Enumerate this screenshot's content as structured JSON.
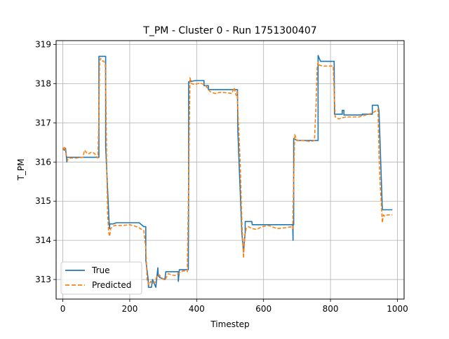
{
  "chart_data": {
    "type": "line",
    "title": "T_PM - Cluster 0 - Run 1751300407",
    "xlabel": "Timestep",
    "ylabel": "T_PM",
    "xlim": [
      -20,
      1020
    ],
    "ylim": [
      312.5,
      319.1
    ],
    "xticks": [
      0,
      200,
      400,
      600,
      800,
      1000
    ],
    "yticks": [
      313,
      314,
      315,
      316,
      317,
      318,
      319
    ],
    "grid": true,
    "legend_position": "lower left",
    "series": [
      {
        "name": "True",
        "color": "#1f77b4",
        "style": "solid",
        "x": [
          0,
          5,
          8,
          12,
          13,
          40,
          100,
          108,
          108,
          128,
          128,
          138,
          140,
          140,
          150,
          160,
          228,
          242,
          248,
          248,
          255,
          256,
          265,
          268,
          278,
          284,
          285,
          290,
          290,
          305,
          308,
          338,
          345,
          345,
          348,
          348,
          350,
          355,
          355,
          375,
          376,
          376,
          398,
          422,
          422,
          435,
          435,
          452,
          452,
          480,
          500,
          522,
          523,
          535,
          540,
          545,
          545,
          565,
          566,
          600,
          600,
          635,
          687,
          688,
          688,
          690,
          690,
          700,
          720,
          752,
          762,
          763,
          763,
          770,
          810,
          811,
          812,
          812,
          835,
          835,
          840,
          840,
          880,
          895,
          895,
          925,
          925,
          942,
          945,
          955,
          960,
          960,
          985
        ],
        "y": [
          316.35,
          316.3,
          316.35,
          316.0,
          316.12,
          316.12,
          316.12,
          316.12,
          318.7,
          318.7,
          316.4,
          314.5,
          314.3,
          314.42,
          314.42,
          314.45,
          314.45,
          314.35,
          314.35,
          313.5,
          313.0,
          312.8,
          312.8,
          313.0,
          312.8,
          313.3,
          313.1,
          313.05,
          313.05,
          313.0,
          313.2,
          313.2,
          313.2,
          312.95,
          313.2,
          313.25,
          313.25,
          313.25,
          313.25,
          313.25,
          315.5,
          318.05,
          318.08,
          318.08,
          317.95,
          317.95,
          317.85,
          317.85,
          317.85,
          317.85,
          317.85,
          317.85,
          316.8,
          314.2,
          313.7,
          314.2,
          314.48,
          314.48,
          314.4,
          314.4,
          314.4,
          314.4,
          314.4,
          314.0,
          314.4,
          314.4,
          316.6,
          316.55,
          316.55,
          316.55,
          316.55,
          316.55,
          318.72,
          318.57,
          318.57,
          318.57,
          317.22,
          317.22,
          317.22,
          317.32,
          317.32,
          317.2,
          317.2,
          317.2,
          317.22,
          317.22,
          317.45,
          317.45,
          317.3,
          314.78,
          314.78,
          314.78,
          314.78
        ]
      },
      {
        "name": "Predicted",
        "color": "#ff7f0e",
        "style": "dashed",
        "x": [
          0,
          5,
          10,
          14,
          20,
          40,
          60,
          65,
          70,
          75,
          85,
          95,
          100,
          105,
          108,
          110,
          113,
          118,
          122,
          127,
          129,
          131,
          134,
          137,
          140,
          143,
          148,
          155,
          165,
          180,
          200,
          220,
          228,
          235,
          242,
          248,
          252,
          255,
          258,
          262,
          268,
          275,
          282,
          288,
          295,
          305,
          315,
          325,
          335,
          345,
          352,
          362,
          372,
          376,
          380,
          385,
          395,
          410,
          425,
          440,
          455,
          470,
          490,
          505,
          512,
          518,
          521,
          524,
          530,
          535,
          540,
          544,
          548,
          555,
          565,
          580,
          595,
          615,
          640,
          665,
          684,
          687,
          690,
          693,
          700,
          720,
          740,
          752,
          757,
          760,
          763,
          766,
          775,
          795,
          808,
          811,
          814,
          825,
          845,
          865,
          885,
          905,
          925,
          935,
          942,
          945,
          948,
          952,
          955,
          958,
          962,
          970,
          985
        ],
        "y": [
          316.3,
          316.4,
          316.2,
          316.05,
          316.1,
          316.1,
          316.12,
          316.3,
          316.25,
          316.2,
          316.25,
          316.22,
          316.15,
          316.1,
          317.2,
          318.55,
          318.65,
          318.58,
          318.58,
          318.5,
          317.5,
          316.0,
          314.7,
          314.2,
          314.1,
          314.3,
          314.35,
          314.38,
          314.38,
          314.38,
          314.4,
          314.35,
          314.32,
          314.28,
          314.25,
          313.8,
          313.0,
          312.9,
          312.85,
          312.95,
          312.9,
          312.92,
          313.1,
          313.12,
          313.05,
          312.98,
          313.15,
          313.12,
          313.1,
          313.15,
          313.2,
          313.22,
          313.2,
          315.5,
          318.15,
          318.0,
          317.98,
          318.02,
          317.97,
          317.8,
          317.75,
          317.78,
          317.77,
          317.75,
          317.9,
          317.7,
          317.8,
          317.2,
          316.0,
          314.5,
          313.55,
          314.15,
          314.3,
          314.35,
          314.3,
          314.28,
          314.35,
          314.38,
          314.3,
          314.32,
          314.35,
          314.3,
          315.5,
          316.7,
          316.55,
          316.55,
          316.52,
          316.55,
          317.5,
          318.4,
          318.55,
          318.48,
          318.45,
          318.45,
          318.45,
          317.8,
          317.15,
          317.1,
          317.15,
          317.15,
          317.15,
          317.2,
          317.25,
          317.3,
          317.35,
          316.2,
          315.5,
          314.9,
          314.45,
          314.65,
          314.62,
          314.65,
          314.65
        ]
      }
    ]
  }
}
